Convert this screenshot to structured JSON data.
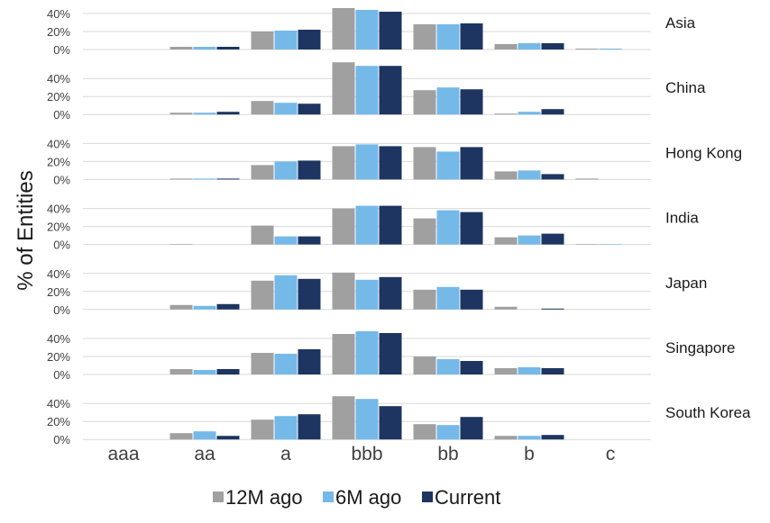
{
  "chart_data": {
    "type": "bar",
    "ylabel": "% of Entities",
    "categories": [
      "aaa",
      "aa",
      "a",
      "bbb",
      "bb",
      "b",
      "c"
    ],
    "y_ticks": [
      "0%",
      "20%",
      "40%"
    ],
    "ylim": [
      0,
      50
    ],
    "grid": true,
    "legend_position": "bottom",
    "series_names": [
      "12M ago",
      "6M ago",
      "Current"
    ],
    "colors": {
      "12M ago": "#a0a0a0",
      "6M ago": "#74b9e8",
      "Current": "#1d3560",
      "grid": "#d9d9d9",
      "text": "#404040"
    },
    "panels": [
      {
        "name": "Asia",
        "series": [
          {
            "name": "12M ago",
            "values": [
              0,
              3,
              20,
              46,
              28,
              6,
              1
            ]
          },
          {
            "name": "6M ago",
            "values": [
              0,
              3,
              21,
              44,
              28,
              7,
              1
            ]
          },
          {
            "name": "Current",
            "values": [
              0,
              3,
              22,
              42,
              29,
              7,
              0
            ]
          }
        ]
      },
      {
        "name": "China",
        "series": [
          {
            "name": "12M ago",
            "values": [
              0,
              2,
              15,
              58,
              27,
              1,
              0
            ]
          },
          {
            "name": "6M ago",
            "values": [
              0,
              2,
              13,
              54,
              30,
              3,
              0
            ]
          },
          {
            "name": "Current",
            "values": [
              0,
              3,
              12,
              54,
              28,
              6,
              0
            ]
          }
        ]
      },
      {
        "name": "Hong Kong",
        "series": [
          {
            "name": "12M ago",
            "values": [
              0,
              1,
              16,
              37,
              36,
              9,
              1
            ]
          },
          {
            "name": "6M ago",
            "values": [
              0,
              1,
              20,
              39,
              31,
              10,
              0
            ]
          },
          {
            "name": "Current",
            "values": [
              0,
              1,
              21,
              37,
              36,
              6,
              0
            ]
          }
        ]
      },
      {
        "name": "India",
        "series": [
          {
            "name": "12M ago",
            "values": [
              0,
              0.5,
              21,
              40,
              29,
              8,
              0.5
            ]
          },
          {
            "name": "6M ago",
            "values": [
              0,
              0,
              9,
              43,
              38,
              10,
              0.5
            ]
          },
          {
            "name": "Current",
            "values": [
              0,
              0,
              9,
              43,
              36,
              12,
              0
            ]
          }
        ]
      },
      {
        "name": "Japan",
        "series": [
          {
            "name": "12M ago",
            "values": [
              0,
              5,
              32,
              41,
              22,
              3,
              0
            ]
          },
          {
            "name": "6M ago",
            "values": [
              0,
              4,
              38,
              33,
              25,
              0,
              0
            ]
          },
          {
            "name": "Current",
            "values": [
              0,
              6,
              34,
              36,
              22,
              1,
              0
            ]
          }
        ]
      },
      {
        "name": "Singapore",
        "series": [
          {
            "name": "12M ago",
            "values": [
              0,
              6,
              24,
              45,
              20,
              7,
              0
            ]
          },
          {
            "name": "6M ago",
            "values": [
              0,
              5,
              23,
              48,
              17,
              8,
              0
            ]
          },
          {
            "name": "Current",
            "values": [
              0,
              6,
              28,
              46,
              15,
              7,
              0
            ]
          }
        ]
      },
      {
        "name": "South Korea",
        "series": [
          {
            "name": "12M ago",
            "values": [
              0,
              7,
              22,
              48,
              17,
              4,
              0
            ]
          },
          {
            "name": "6M ago",
            "values": [
              0,
              9,
              26,
              45,
              16,
              4,
              0
            ]
          },
          {
            "name": "Current",
            "values": [
              0,
              4,
              28,
              37,
              25,
              5,
              0
            ]
          }
        ]
      }
    ]
  }
}
